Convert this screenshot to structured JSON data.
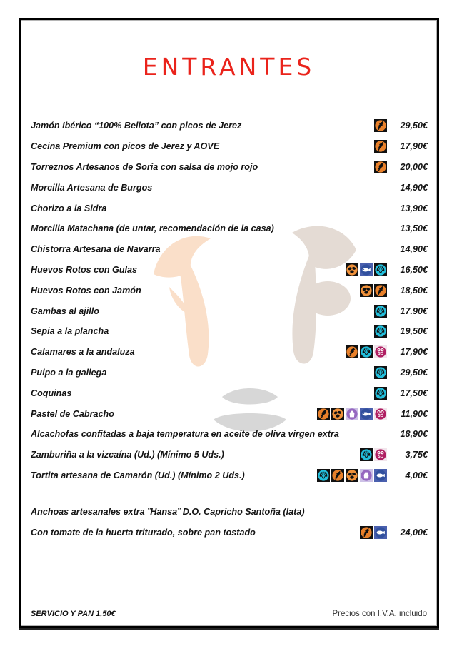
{
  "page": {
    "title": "ENTRANTES",
    "title_color": "#EA231B",
    "footer": {
      "left": "SERVICIO Y PAN   1,50€",
      "right": "Precios con I.V.A. incluido"
    }
  },
  "allergen_icons": {
    "gluten": {
      "label": "gluten-wheat-icon",
      "square": "#111111",
      "circle": "#E8802A",
      "glyph": "#111111"
    },
    "egg": {
      "label": "egg-icon",
      "square": "#111111",
      "circle": "#F0913A",
      "glyph": "#111111"
    },
    "mollusc": {
      "label": "mollusc-shell-icon",
      "square": "#111111",
      "circle": "#22BFDC",
      "glyph": "#111111"
    },
    "fish": {
      "label": "fish-icon",
      "square": "#4A60AE",
      "circle": "#31509E",
      "glyph": "#ffffff"
    },
    "milk": {
      "label": "milk-jug-icon",
      "square": "#CDC1E6",
      "circle": "#9668C0",
      "glyph": "#ffffff"
    },
    "sulphites": {
      "label": "sulphites-so2-icon",
      "square": "#F2E5EC",
      "circle": "#B01F62",
      "glyph": "#ffffff"
    }
  },
  "watermark": {
    "name": "bull-head-watermark",
    "colors": {
      "left_horn": "#FADFC9",
      "right_horn": "#E4DBD4",
      "muzzle": "#D7D7D7"
    }
  },
  "menu": {
    "items": [
      {
        "name": "Jamón Ibérico “100% Bellota” con picos de Jerez",
        "allergens": [
          "gluten"
        ],
        "price": "29,50€"
      },
      {
        "name": "Cecina Premium con picos de Jerez y AOVE",
        "allergens": [
          "gluten"
        ],
        "price": "17,90€"
      },
      {
        "name": "Torreznos Artesanos de Soria con salsa de mojo rojo",
        "allergens": [
          "gluten"
        ],
        "price": "20,00€"
      },
      {
        "name": "Morcilla Artesana de Burgos",
        "allergens": [],
        "price": "14,90€"
      },
      {
        "name": "Chorizo a la Sidra",
        "allergens": [],
        "price": "13,90€"
      },
      {
        "name": "Morcilla Matachana (de untar, recomendación de la casa)",
        "allergens": [],
        "price": "13,50€"
      },
      {
        "name": "Chistorra Artesana de Navarra",
        "allergens": [],
        "price": "14,90€"
      },
      {
        "name": "Huevos Rotos con Gulas",
        "allergens": [
          "egg",
          "fish",
          "mollusc"
        ],
        "price": "16,50€"
      },
      {
        "name": "Huevos Rotos con Jamón",
        "allergens": [
          "egg",
          "gluten"
        ],
        "price": "18,50€"
      },
      {
        "name": "Gambas al ajillo",
        "allergens": [
          "mollusc"
        ],
        "price": "17.90€"
      },
      {
        "name": "Sepia a la plancha",
        "allergens": [
          "mollusc"
        ],
        "price": "19,50€"
      },
      {
        "name": "Calamares a la andaluza",
        "allergens": [
          "gluten",
          "mollusc",
          "sulphites"
        ],
        "price": "17,90€"
      },
      {
        "name": "Pulpo a la gallega",
        "allergens": [
          "mollusc"
        ],
        "price": "29,50€"
      },
      {
        "name": "Coquinas",
        "allergens": [
          "mollusc"
        ],
        "price": "17,50€"
      },
      {
        "name": "Pastel de Cabracho",
        "allergens": [
          "gluten",
          "egg",
          "milk",
          "fish",
          "sulphites"
        ],
        "price": "11,90€"
      },
      {
        "name": "Alcachofas confitadas a baja temperatura en aceite de oliva virgen extra",
        "allergens": [],
        "price": "18,90€"
      },
      {
        "name": "Zamburiña a la vizcaína (Ud.) (Mínimo 5 Uds.)",
        "allergens": [
          "mollusc",
          "sulphites"
        ],
        "price": "3,75€"
      },
      {
        "name": "Tortita artesana de Camarón (Ud.) (Mínimo 2 Uds.)",
        "allergens": [
          "mollusc",
          "gluten",
          "egg",
          "milk",
          "fish"
        ],
        "price": "4,00€"
      },
      {
        "name": "Anchoas artesanales extra ¨Hansa¨ D.O. Capricho Santoña (lata)",
        "allergens": [],
        "price": "",
        "spacer_before": true
      },
      {
        "name": "Con tomate de la huerta triturado, sobre pan tostado",
        "allergens": [
          "gluten",
          "fish"
        ],
        "price": "24,00€"
      }
    ]
  }
}
